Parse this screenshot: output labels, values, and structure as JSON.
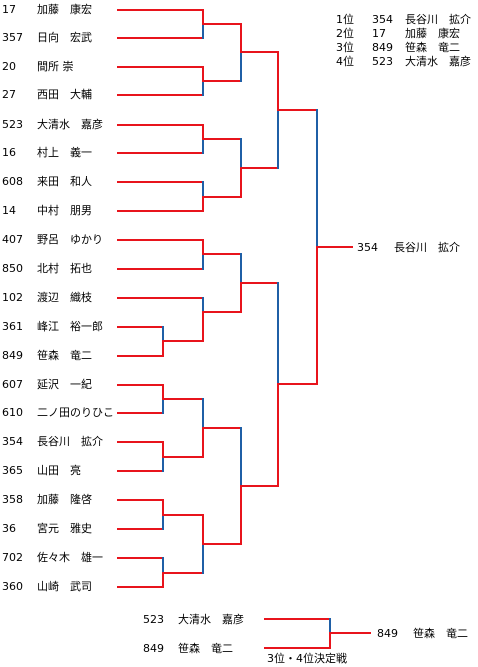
{
  "players": [
    {
      "seed": "17",
      "name": "加藤　康宏"
    },
    {
      "seed": "357",
      "name": "日向　宏武"
    },
    {
      "seed": "20",
      "name": "間所 崇"
    },
    {
      "seed": "27",
      "name": "西田　大輔"
    },
    {
      "seed": "523",
      "name": "大清水　嘉彦"
    },
    {
      "seed": "16",
      "name": "村上　義一"
    },
    {
      "seed": "608",
      "name": "来田　和人"
    },
    {
      "seed": "14",
      "name": "中村　朋男"
    },
    {
      "seed": "407",
      "name": "野呂　ゆかり"
    },
    {
      "seed": "850",
      "name": "北村　拓也"
    },
    {
      "seed": "102",
      "name": "渡辺　織枝"
    },
    {
      "seed": "361",
      "name": "峰江　裕一郎"
    },
    {
      "seed": "849",
      "name": "笹森　竜二"
    },
    {
      "seed": "607",
      "name": "延沢　一紀"
    },
    {
      "seed": "610",
      "name": "二ノ田のりひこ"
    },
    {
      "seed": "354",
      "name": "長谷川　拡介"
    },
    {
      "seed": "365",
      "name": "山田　亮"
    },
    {
      "seed": "358",
      "name": "加藤　隆啓"
    },
    {
      "seed": "36",
      "name": "宮元　雅史"
    },
    {
      "seed": "702",
      "name": "佐々木　雄一"
    },
    {
      "seed": "360",
      "name": "山崎　武司"
    }
  ],
  "rankings": [
    {
      "place": "1位",
      "seed": "354",
      "name": "長谷川　拡介"
    },
    {
      "place": "2位",
      "seed": "17",
      "name": "加藤　康宏"
    },
    {
      "place": "3位",
      "seed": "849",
      "name": "笹森　竜二"
    },
    {
      "place": "4位",
      "seed": "523",
      "name": "大清水　嘉彦"
    }
  ],
  "champion": {
    "seed": "354",
    "name": "長谷川　拡介"
  },
  "third_place_match": {
    "title": "3位・4位決定戦",
    "players": [
      {
        "seed": "523",
        "name": "大清水　嘉彦"
      },
      {
        "seed": "849",
        "name": "笹森　竜二"
      }
    ],
    "winner": {
      "seed": "849",
      "name": "笹森　竜二"
    }
  },
  "colors": {
    "win_path": "#e8141c",
    "loss_path": "#1f5fa6"
  }
}
